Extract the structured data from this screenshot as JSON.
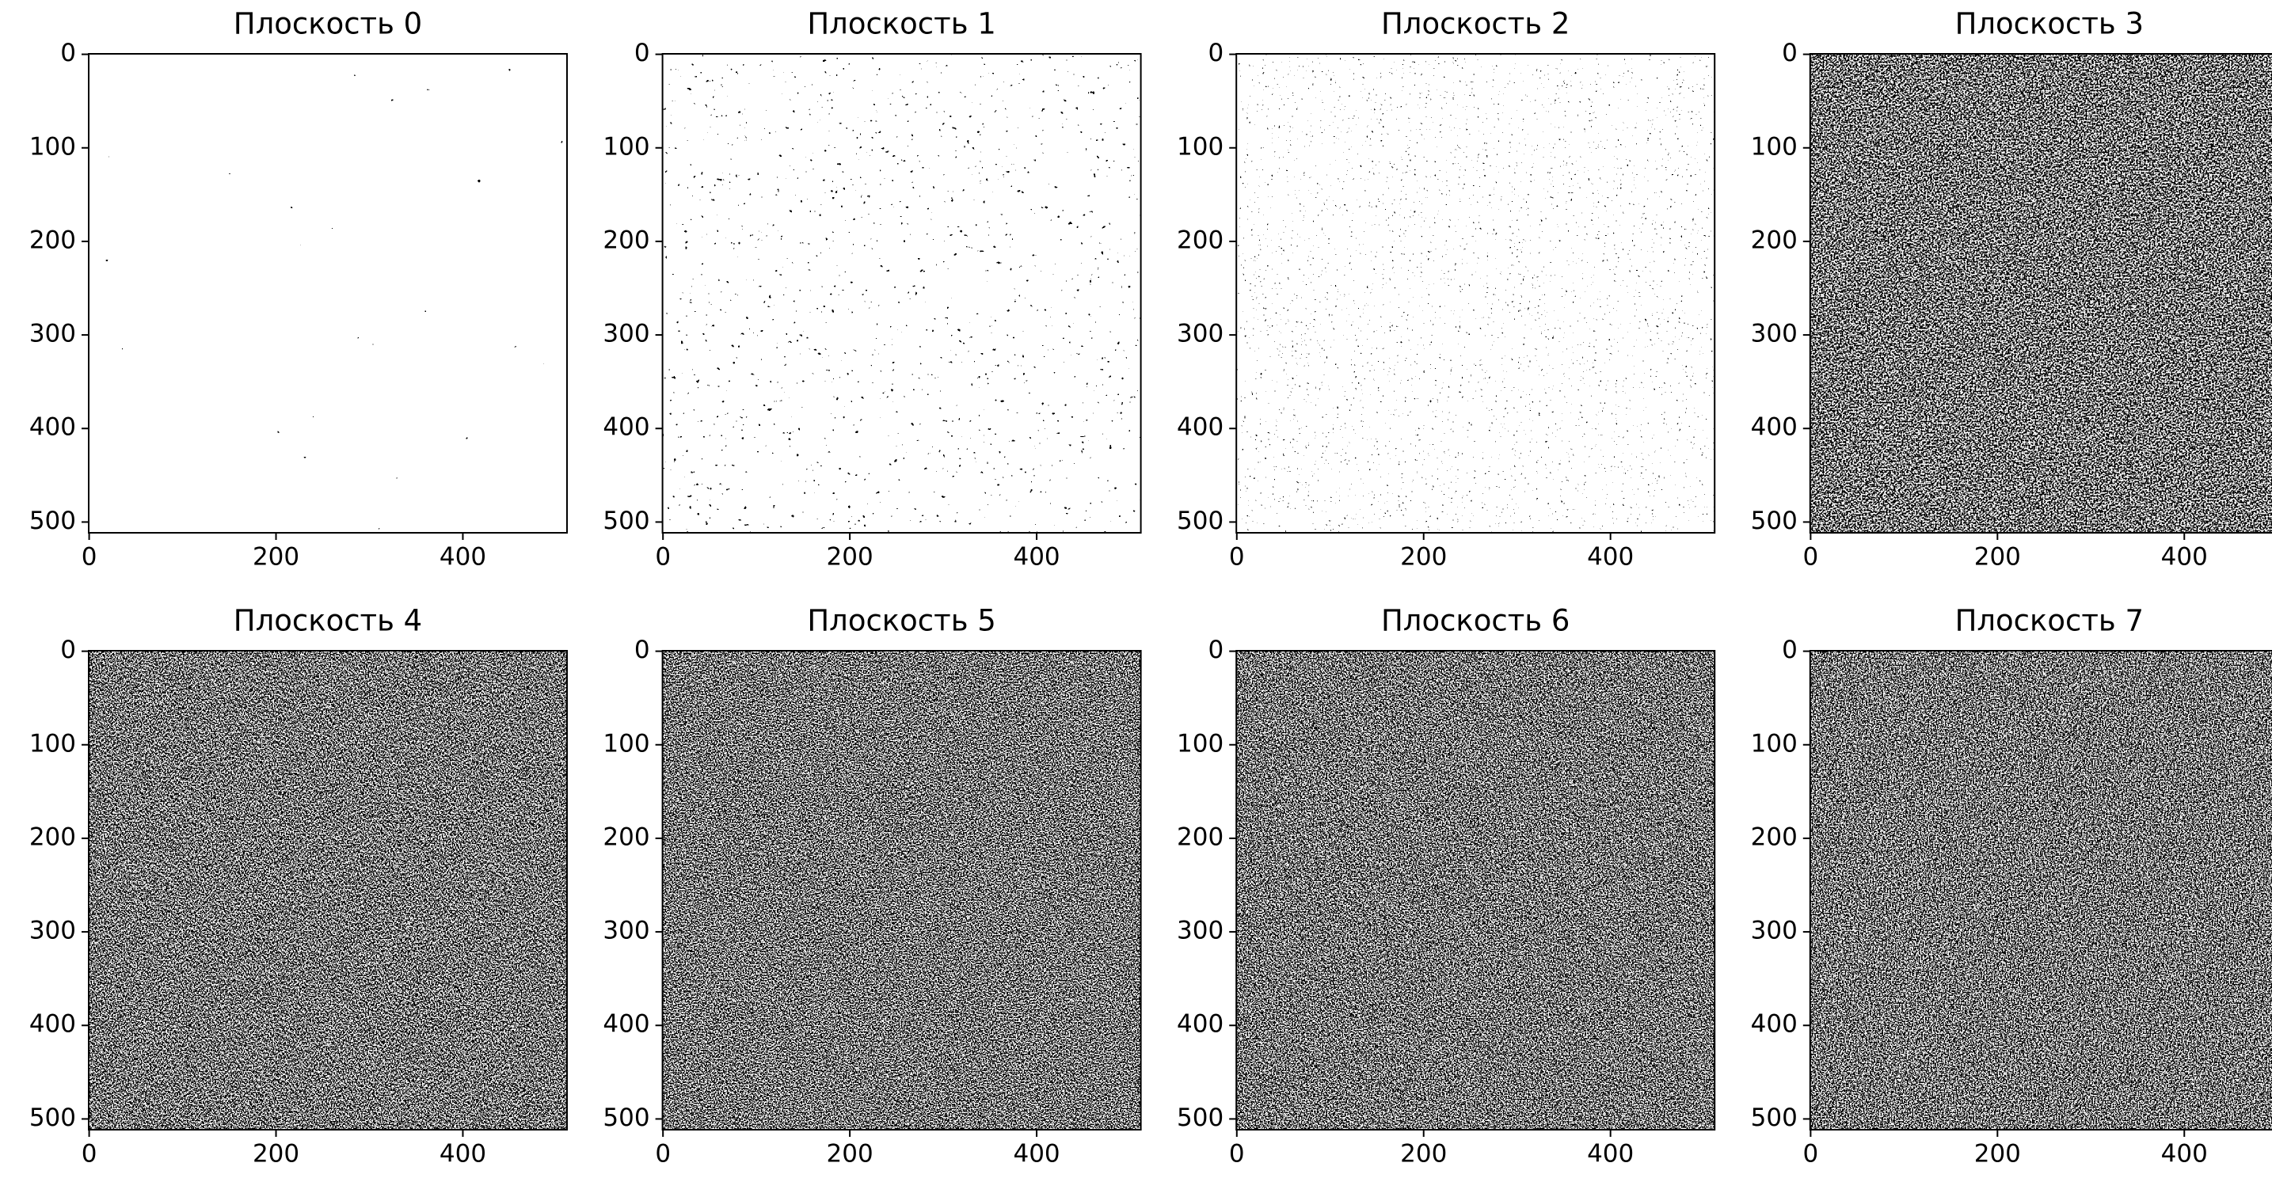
{
  "chart_data": [
    {
      "type": "image",
      "title": "Плоскость 0",
      "xlim": [
        -0.5,
        511.5
      ],
      "ylim": [
        511.5,
        -0.5
      ],
      "xticks": [
        0,
        200,
        400
      ],
      "yticks": [
        0,
        100,
        200,
        300,
        400,
        500
      ]
    },
    {
      "type": "image",
      "title": "Плоскость 1",
      "xlim": [
        -0.5,
        511.5
      ],
      "ylim": [
        511.5,
        -0.5
      ],
      "xticks": [
        0,
        200,
        400
      ],
      "yticks": [
        0,
        100,
        200,
        300,
        400,
        500
      ]
    },
    {
      "type": "image",
      "title": "Плоскость 2",
      "xlim": [
        -0.5,
        511.5
      ],
      "ylim": [
        511.5,
        -0.5
      ],
      "xticks": [
        0,
        200,
        400
      ],
      "yticks": [
        0,
        100,
        200,
        300,
        400,
        500
      ]
    },
    {
      "type": "image",
      "title": "Плоскость 3",
      "xlim": [
        -0.5,
        511.5
      ],
      "ylim": [
        511.5,
        -0.5
      ],
      "xticks": [
        0,
        200,
        400
      ],
      "yticks": [
        0,
        100,
        200,
        300,
        400,
        500
      ]
    },
    {
      "type": "image",
      "title": "Плоскость 4",
      "xlim": [
        -0.5,
        511.5
      ],
      "ylim": [
        511.5,
        -0.5
      ],
      "xticks": [
        0,
        200,
        400
      ],
      "yticks": [
        0,
        100,
        200,
        300,
        400,
        500
      ]
    },
    {
      "type": "image",
      "title": "Плоскость 5",
      "xlim": [
        -0.5,
        511.5
      ],
      "ylim": [
        511.5,
        -0.5
      ],
      "xticks": [
        0,
        200,
        400
      ],
      "yticks": [
        0,
        100,
        200,
        300,
        400,
        500
      ]
    },
    {
      "type": "image",
      "title": "Плоскость 6",
      "xlim": [
        -0.5,
        511.5
      ],
      "ylim": [
        511.5,
        -0.5
      ],
      "xticks": [
        0,
        200,
        400
      ],
      "yticks": [
        0,
        100,
        200,
        300,
        400,
        500
      ]
    },
    {
      "type": "image",
      "title": "Плоскость 7",
      "xlim": [
        -0.5,
        511.5
      ],
      "ylim": [
        511.5,
        -0.5
      ],
      "xticks": [
        0,
        200,
        400
      ],
      "yticks": [
        0,
        100,
        200,
        300,
        400,
        500
      ]
    }
  ]
}
